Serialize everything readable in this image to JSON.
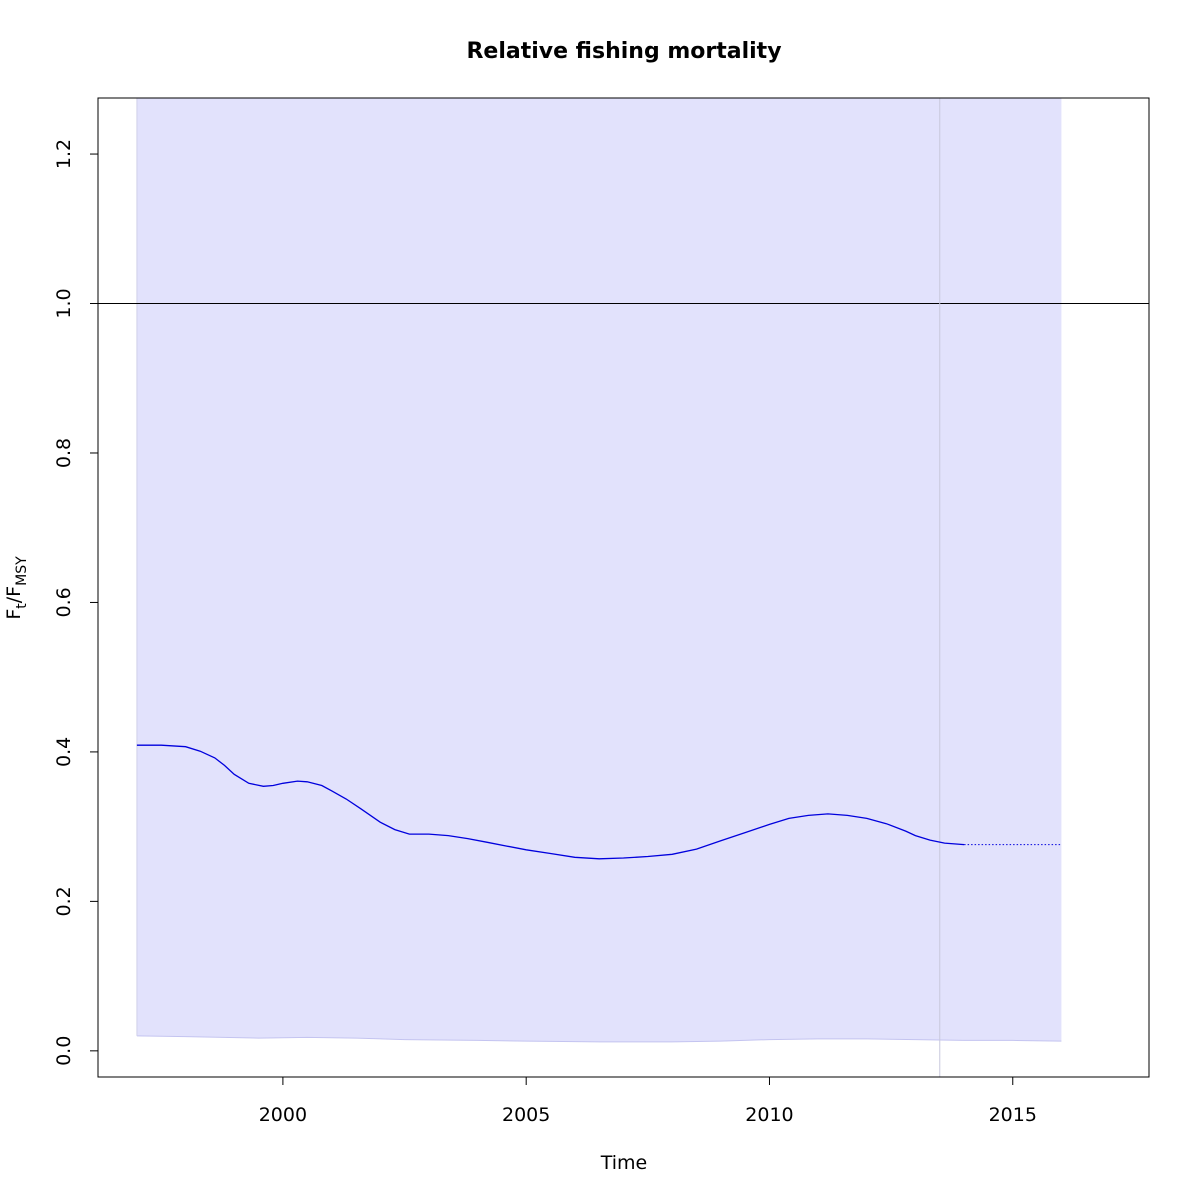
{
  "chart_data": {
    "type": "line",
    "title": "Relative fishing mortality",
    "xlabel": "Time",
    "ylabel": {
      "main": "F",
      "sub1": "t",
      "sep": "/F",
      "sub2": "MSY"
    },
    "xlim": [
      1996.2,
      2017.8
    ],
    "ylim": [
      -0.035,
      1.275
    ],
    "x_ticks": [
      2000,
      2005,
      2010,
      2015
    ],
    "x_tick_labels": [
      "2000",
      "2005",
      "2010",
      "2015"
    ],
    "y_ticks": [
      0.0,
      0.2,
      0.4,
      0.6,
      0.8,
      1.0,
      1.2
    ],
    "y_tick_labels": [
      "0.0",
      "0.2",
      "0.4",
      "0.6",
      "0.8",
      "1.0",
      "1.2"
    ],
    "reference_line": {
      "y": 1.0,
      "color": "#000000"
    },
    "vertical_line": {
      "x": 2013.5,
      "color": "#c8c8dc"
    },
    "ci_band_color": "#e2e2fc",
    "estimate": {
      "color": "#0000dd",
      "x": [
        1997.0,
        1997.5,
        1998.0,
        1998.3,
        1998.6,
        1998.8,
        1999.0,
        1999.3,
        1999.6,
        1999.8,
        2000.0,
        2000.3,
        2000.5,
        2000.8,
        2001.0,
        2001.3,
        2001.6,
        2002.0,
        2002.3,
        2002.6,
        2003.0,
        2003.4,
        2003.8,
        2004.2,
        2004.6,
        2005.0,
        2005.5,
        2006.0,
        2006.5,
        2007.0,
        2007.5,
        2008.0,
        2008.5,
        2009.0,
        2009.5,
        2010.0,
        2010.4,
        2010.8,
        2011.2,
        2011.6,
        2012.0,
        2012.4,
        2012.8,
        2013.0,
        2013.3,
        2013.6,
        2014.0
      ],
      "y": [
        0.409,
        0.409,
        0.407,
        0.401,
        0.392,
        0.382,
        0.37,
        0.358,
        0.354,
        0.355,
        0.358,
        0.361,
        0.36,
        0.355,
        0.348,
        0.337,
        0.324,
        0.306,
        0.296,
        0.29,
        0.29,
        0.288,
        0.284,
        0.279,
        0.274,
        0.269,
        0.264,
        0.259,
        0.257,
        0.258,
        0.26,
        0.263,
        0.27,
        0.281,
        0.292,
        0.303,
        0.311,
        0.315,
        0.317,
        0.315,
        0.311,
        0.304,
        0.294,
        0.288,
        0.282,
        0.278,
        0.276
      ]
    },
    "projection": {
      "x": [
        2014.0,
        2016.0
      ],
      "y": [
        0.276,
        0.276
      ],
      "style": "dotted"
    },
    "ci_upper": {
      "x": [
        1997.0,
        2016.0
      ],
      "y": [
        1.275,
        1.275
      ]
    },
    "ci_lower": {
      "x": [
        1997.0,
        1998.0,
        1999.5,
        2000.5,
        2001.5,
        2002.5,
        2004.0,
        2005.0,
        2006.5,
        2008.0,
        2009.0,
        2010.0,
        2011.0,
        2012.0,
        2013.0,
        2014.0,
        2015.0,
        2016.0
      ],
      "y": [
        0.02,
        0.019,
        0.017,
        0.018,
        0.017,
        0.015,
        0.014,
        0.013,
        0.012,
        0.012,
        0.013,
        0.015,
        0.016,
        0.016,
        0.015,
        0.014,
        0.014,
        0.013
      ]
    }
  }
}
